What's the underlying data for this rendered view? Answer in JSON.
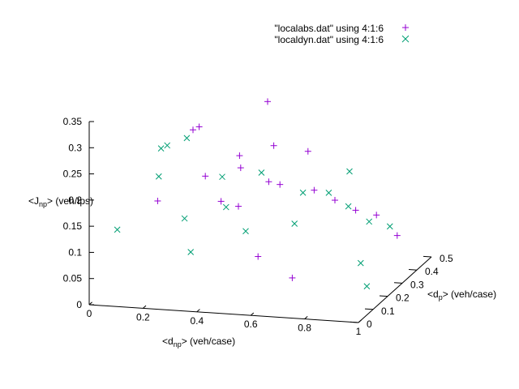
{
  "chart_data": {
    "type": "scatter",
    "view": "3d",
    "xlabel": "<dnp> (veh/case)",
    "ylabel": "<dp> (veh/case)",
    "zlabel": "<Jnp> (veh/tps)",
    "xlim": [
      0,
      1
    ],
    "ylim": [
      0,
      0.5
    ],
    "zlim": [
      0,
      0.35
    ],
    "x_ticks": [
      "0",
      "0.2",
      "0.4",
      "0.6",
      "0.8",
      "1"
    ],
    "y_ticks": [
      "0",
      "0.1",
      "0.2",
      "0.3",
      "0.4",
      "0.5"
    ],
    "z_ticks": [
      "0",
      "0.05",
      "0.1",
      "0.15",
      "0.2",
      "0.25",
      "0.3",
      "0.35"
    ],
    "grid": false,
    "legend_position": "top-right",
    "series": [
      {
        "name": "\"localabs.dat\" using 4:1:6",
        "marker": "+",
        "color": "#9400d3",
        "sampled_points": [
          [
            0.5,
            0.3,
            0.33
          ],
          [
            0.3,
            0.2,
            0.3
          ],
          [
            0.25,
            0.25,
            0.28
          ],
          [
            0.45,
            0.2,
            0.25
          ],
          [
            0.55,
            0.25,
            0.26
          ],
          [
            0.65,
            0.3,
            0.24
          ],
          [
            0.4,
            0.3,
            0.2
          ],
          [
            0.35,
            0.15,
            0.22
          ],
          [
            0.6,
            0.2,
            0.2
          ],
          [
            0.7,
            0.25,
            0.18
          ],
          [
            0.75,
            0.3,
            0.15
          ],
          [
            0.8,
            0.35,
            0.12
          ],
          [
            0.85,
            0.4,
            0.1
          ],
          [
            0.9,
            0.45,
            0.05
          ],
          [
            0.5,
            0.1,
            0.18
          ],
          [
            0.6,
            0.05,
            0.1
          ],
          [
            0.7,
            0.1,
            0.05
          ],
          [
            0.3,
            0.35,
            0.12
          ],
          [
            0.45,
            0.4,
            0.15
          ],
          [
            0.2,
            0.1,
            0.18
          ]
        ]
      },
      {
        "name": "\"localdyn.dat\" using 4:1:6",
        "marker": "x",
        "color": "#009e73",
        "sampled_points": [
          [
            0.05,
            0.4,
            0.2
          ],
          [
            0.1,
            0.35,
            0.22
          ],
          [
            0.05,
            0.1,
            0.12
          ],
          [
            0.15,
            0.2,
            0.2
          ],
          [
            0.2,
            0.3,
            0.25
          ],
          [
            0.3,
            0.1,
            0.15
          ],
          [
            0.4,
            0.2,
            0.15
          ],
          [
            0.5,
            0.15,
            0.12
          ],
          [
            0.6,
            0.3,
            0.1
          ],
          [
            0.7,
            0.35,
            0.15
          ],
          [
            0.75,
            0.4,
            0.18
          ],
          [
            0.8,
            0.3,
            0.14
          ],
          [
            0.85,
            0.35,
            0.1
          ],
          [
            0.9,
            0.2,
            0.06
          ],
          [
            0.95,
            0.15,
            0.03
          ],
          [
            0.9,
            0.4,
            0.08
          ],
          [
            0.35,
            0.05,
            0.1
          ],
          [
            0.45,
            0.35,
            0.18
          ],
          [
            0.25,
            0.45,
            0.14
          ],
          [
            0.55,
            0.45,
            0.12
          ]
        ]
      }
    ]
  }
}
